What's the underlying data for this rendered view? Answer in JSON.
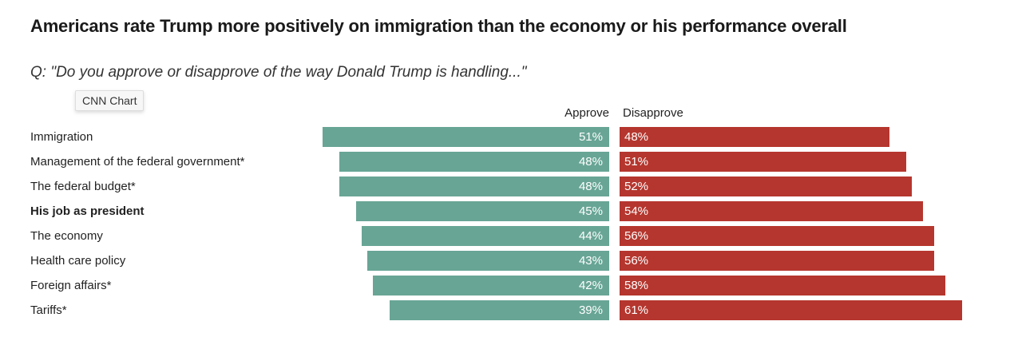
{
  "title": "Americans rate Trump more positively on immigration than the economy or his performance overall",
  "subtitle": "Q: \"Do you approve or disapprove of the way Donald Trump is handling...\"",
  "tooltip": "CNN Chart",
  "colors": {
    "approve": "#68a595",
    "disapprove": "#b5362e"
  },
  "chart_data": {
    "type": "bar",
    "orientation": "horizontal-diverging",
    "title": "Americans rate Trump more positively on immigration than the economy or his performance overall",
    "subtitle": "Q: \"Do you approve or disapprove of the way Donald Trump is handling...\"",
    "legend": [
      "Approve",
      "Disapprove"
    ],
    "legend_placement": "top",
    "categories": [
      "Immigration",
      "Management of the federal government*",
      "The federal budget*",
      "His job as president",
      "The economy",
      "Health care policy",
      "Foreign affairs*",
      "Tariffs*"
    ],
    "bold_categories": [
      "His job as president"
    ],
    "series": [
      {
        "name": "Approve",
        "values": [
          51,
          48,
          48,
          45,
          44,
          43,
          42,
          39
        ],
        "labels": [
          "51%",
          "48%",
          "48%",
          "45%",
          "44%",
          "43%",
          "42%",
          "39%"
        ]
      },
      {
        "name": "Disapprove",
        "values": [
          48,
          51,
          52,
          54,
          56,
          56,
          58,
          61
        ],
        "labels": [
          "48%",
          "51%",
          "52%",
          "54%",
          "56%",
          "56%",
          "58%",
          "61%"
        ]
      }
    ],
    "unit": "%",
    "grid": false
  }
}
